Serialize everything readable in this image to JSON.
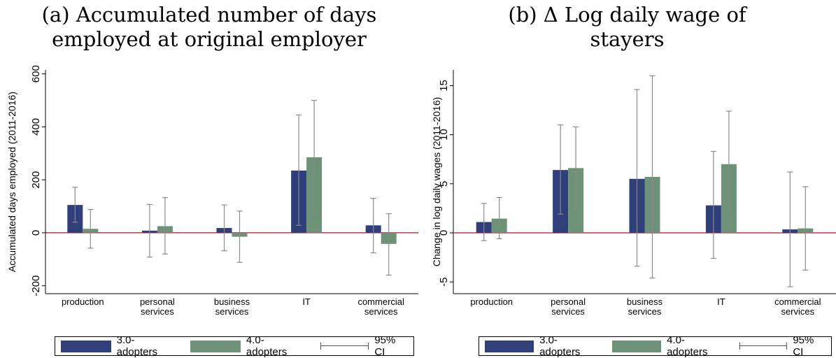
{
  "colors": {
    "adopters_3": "#2f3f7a",
    "adopters_4": "#6e9277",
    "ci": "#8a8a8a",
    "zero_line": "#b0102a"
  },
  "legend": {
    "series1": "3.0-adopters",
    "series2": "4.0-adopters",
    "ci": "95% CI"
  },
  "panels": [
    {
      "title_line1": "(a) Accumulated number of days",
      "title_line2": "employed at original employer"
    },
    {
      "title_line1": "(b) Δ Log daily wage of",
      "title_line2": "stayers"
    }
  ],
  "chart_data": [
    {
      "type": "bar",
      "title": "(a) Accumulated number of days employed at original employer",
      "xlabel": "",
      "ylabel": "Accumulated days employed (2011-2016)",
      "ylim": [
        -230,
        615
      ],
      "yticks": [
        -200,
        0,
        200,
        400,
        600
      ],
      "categories": [
        [
          "production"
        ],
        [
          "personal",
          "services"
        ],
        [
          "business",
          "services"
        ],
        [
          "IT"
        ],
        [
          "commercial",
          "services"
        ]
      ],
      "series": [
        {
          "name": "3.0-adopters",
          "values": [
            105,
            8,
            18,
            235,
            28
          ],
          "ci_low": [
            40,
            -92,
            -68,
            28,
            -76
          ],
          "ci_high": [
            172,
            107,
            105,
            445,
            130
          ]
        },
        {
          "name": "4.0-adopters",
          "values": [
            15,
            25,
            -15,
            285,
            -42
          ],
          "ci_low": [
            -58,
            -80,
            -112,
            70,
            -160
          ],
          "ci_high": [
            88,
            133,
            82,
            500,
            72
          ]
        }
      ],
      "grid": false,
      "legend_position": "bottom"
    },
    {
      "type": "bar",
      "title": "(b) Δ Log daily wage of stayers",
      "xlabel": "",
      "ylabel": "Change in log daily wages (2011-2016)",
      "ylim": [
        -6.2,
        16.6
      ],
      "yticks": [
        -5,
        0,
        5,
        10,
        15
      ],
      "categories": [
        [
          "production"
        ],
        [
          "personal",
          "services"
        ],
        [
          "business",
          "services"
        ],
        [
          "IT"
        ],
        [
          "commercial",
          "services"
        ]
      ],
      "series": [
        {
          "name": "3.0-adopters",
          "values": [
            1.1,
            6.4,
            5.5,
            2.8,
            0.35
          ],
          "ci_low": [
            -0.8,
            1.9,
            -3.4,
            -2.6,
            -5.5
          ],
          "ci_high": [
            3.0,
            11.0,
            14.6,
            8.3,
            6.2
          ]
        },
        {
          "name": "4.0-adopters",
          "values": [
            1.45,
            6.6,
            5.7,
            7.0,
            0.45
          ],
          "ci_low": [
            -0.6,
            2.5,
            -4.6,
            1.6,
            -3.8
          ],
          "ci_high": [
            3.6,
            10.8,
            16.0,
            12.4,
            4.7
          ]
        }
      ],
      "grid": false,
      "legend_position": "bottom"
    }
  ]
}
